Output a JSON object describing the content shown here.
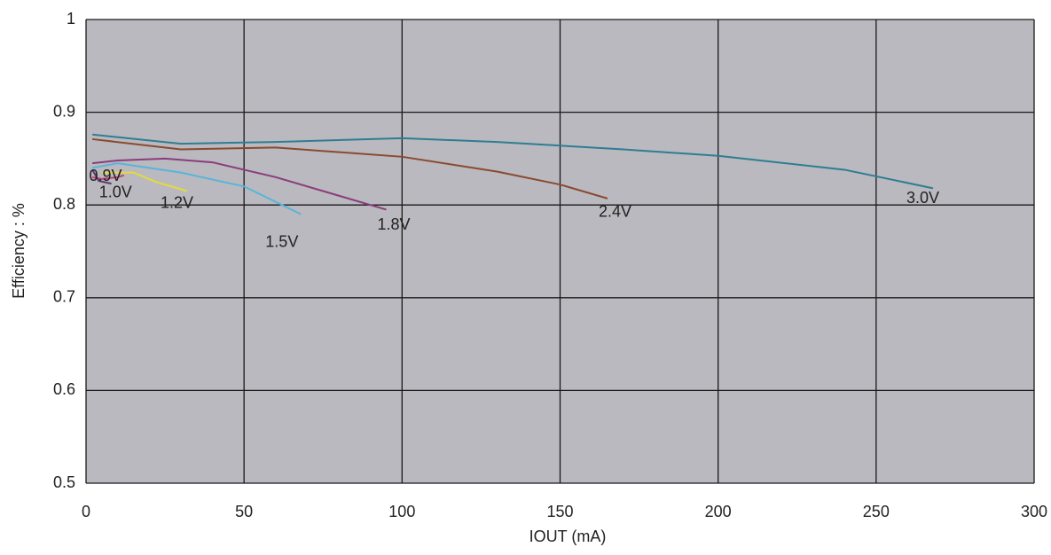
{
  "chart_data": {
    "type": "line",
    "x_label": "IOUT (mA)",
    "y_label": "Efficiency : %",
    "xlim": [
      0,
      300
    ],
    "xticks": [
      0,
      50,
      100,
      150,
      200,
      250,
      300
    ],
    "ylim": [
      0.5,
      1
    ],
    "yticks": [
      0.5,
      0.6,
      0.7,
      0.8,
      0.9,
      1
    ],
    "grid": true,
    "series": [
      {
        "name": "3.0V",
        "color": "#2f7d92",
        "x": [
          2,
          30,
          60,
          100,
          130,
          170,
          200,
          240,
          268
        ],
        "values": [
          0.876,
          0.866,
          0.868,
          0.872,
          0.868,
          0.86,
          0.853,
          0.838,
          0.818
        ]
      },
      {
        "name": "2.4V",
        "color": "#8a4a30",
        "x": [
          2,
          30,
          60,
          100,
          130,
          150,
          165
        ],
        "values": [
          0.871,
          0.86,
          0.862,
          0.852,
          0.836,
          0.822,
          0.807
        ]
      },
      {
        "name": "1.8V",
        "color": "#8c3c7c",
        "x": [
          2,
          10,
          25,
          40,
          60,
          80,
          95
        ],
        "values": [
          0.845,
          0.848,
          0.85,
          0.846,
          0.83,
          0.81,
          0.795
        ]
      },
      {
        "name": "1.5V",
        "color": "#5ab4d8",
        "x": [
          2,
          10,
          20,
          30,
          50,
          62,
          68
        ],
        "values": [
          0.84,
          0.845,
          0.84,
          0.835,
          0.82,
          0.8,
          0.79
        ]
      },
      {
        "name": "1.2V",
        "color": "#e4dc3c",
        "x": [
          5,
          15,
          22,
          32
        ],
        "values": [
          0.835,
          0.835,
          0.825,
          0.815
        ]
      },
      {
        "name": "1.0V",
        "color": "#c0407a",
        "x": [
          2,
          5,
          10,
          12
        ],
        "values": [
          0.83,
          0.828,
          0.83,
          0.832
        ]
      },
      {
        "name": "0.9V",
        "color": "#5a3a6a",
        "x": [
          2,
          4,
          8
        ],
        "values": [
          0.838,
          0.826,
          0.823
        ]
      }
    ]
  }
}
